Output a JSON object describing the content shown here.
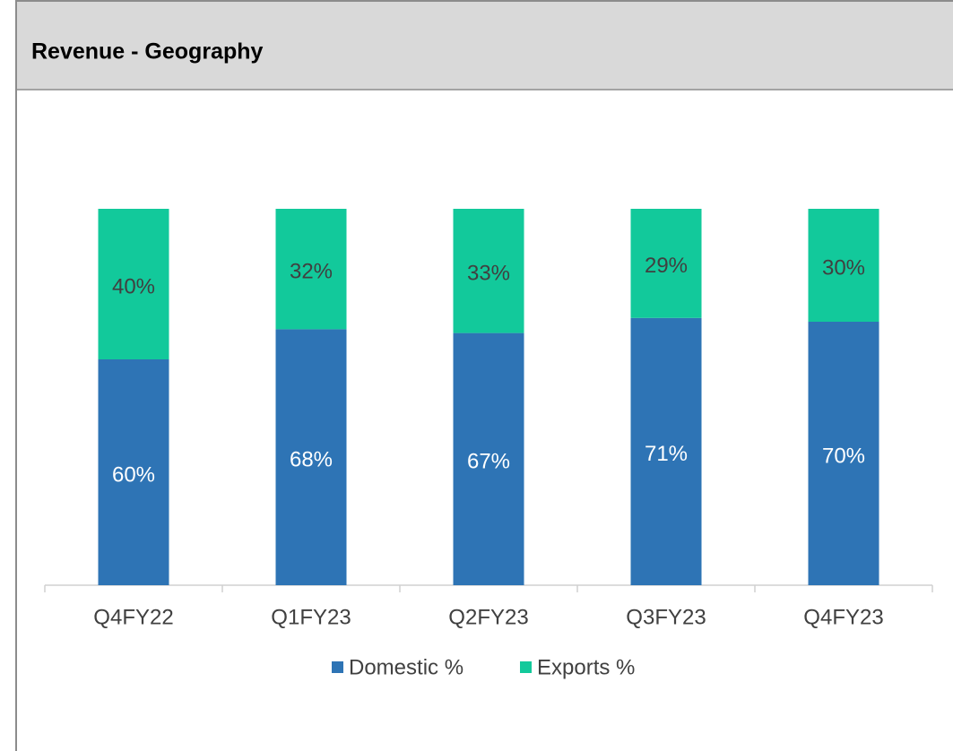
{
  "chart_data": {
    "type": "stacked_bar",
    "title": "Revenue - Geography",
    "categories": [
      "Q4FY22",
      "Q1FY23",
      "Q2FY23",
      "Q3FY23",
      "Q4FY23"
    ],
    "series": [
      {
        "name": "Domestic %",
        "color": "#2e74b5",
        "values": [
          60,
          68,
          67,
          71,
          70
        ],
        "value_labels": [
          "60%",
          "68%",
          "67%",
          "71%",
          "70%"
        ]
      },
      {
        "name": "Exports %",
        "color": "#12c99b",
        "values": [
          40,
          32,
          33,
          29,
          30
        ],
        "value_labels": [
          "40%",
          "32%",
          "33%",
          "29%",
          "30%"
        ]
      }
    ],
    "ylim": [
      0,
      100
    ],
    "legend": "bottom"
  }
}
